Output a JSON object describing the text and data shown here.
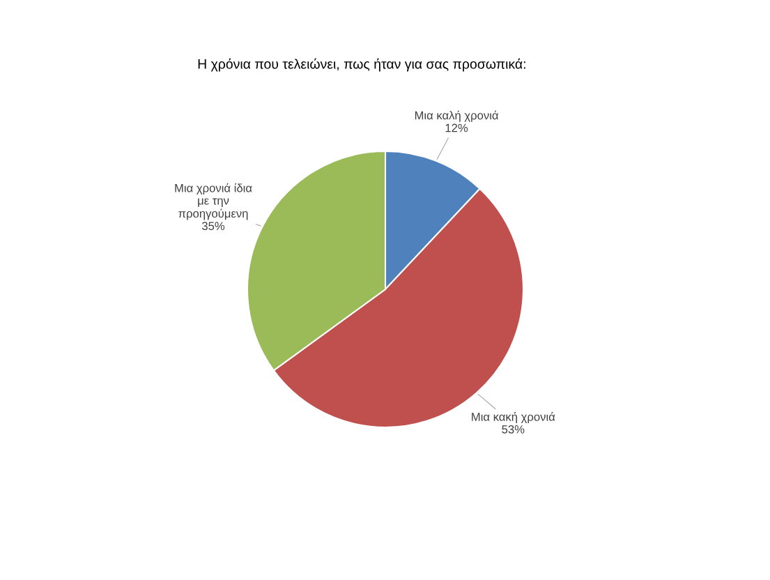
{
  "chart_data": {
    "type": "pie",
    "title": "Η χρόνια που τελειώνει, πως ήταν για σας προσωπικά:",
    "categories": [
      "Μια καλή χρονιά",
      "Μια κακή χρονιά",
      "Μια χρονιά ίδια\nμε την\nπροηγούμενη"
    ],
    "values": [
      12,
      53,
      35
    ],
    "value_labels": [
      "12%",
      "53%",
      "35%"
    ],
    "colors": [
      "#4f81bd",
      "#c0504d",
      "#9bbb59"
    ],
    "legend": false
  }
}
